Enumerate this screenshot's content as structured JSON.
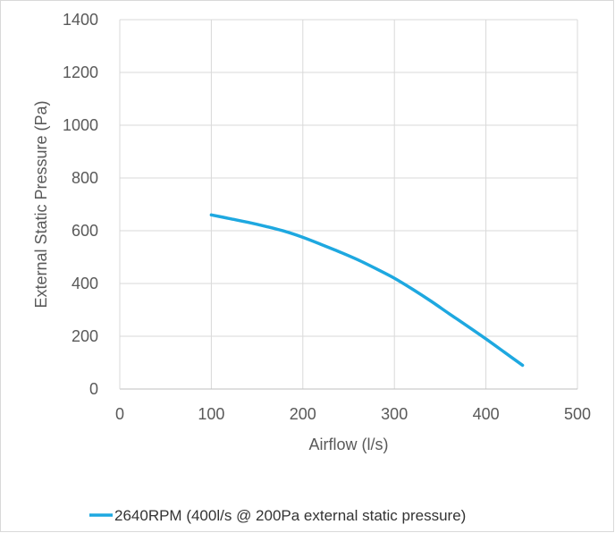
{
  "chart_data": {
    "type": "line",
    "title": "",
    "xlabel": "Airflow (l/s)",
    "ylabel": "External Static Pressure (Pa)",
    "xlim": [
      0,
      500
    ],
    "ylim": [
      0,
      1400
    ],
    "xticks": [
      0,
      100,
      200,
      300,
      400,
      500
    ],
    "yticks": [
      0,
      200,
      400,
      600,
      800,
      1000,
      1200,
      1400
    ],
    "grid": true,
    "legend_position": "bottom",
    "series": [
      {
        "name": "2640RPM (400l/s @ 200Pa external static pressure)",
        "color": "#1ea8e0",
        "x": [
          100,
          120,
          140,
          160,
          180,
          200,
          220,
          240,
          260,
          280,
          300,
          320,
          340,
          360,
          380,
          400,
          420,
          440
        ],
        "y": [
          660,
          646,
          632,
          616,
          598,
          575,
          548,
          520,
          490,
          456,
          420,
          378,
          333,
          285,
          238,
          190,
          140,
          90
        ]
      }
    ]
  }
}
